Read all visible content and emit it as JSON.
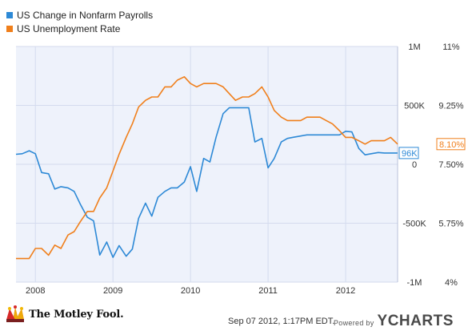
{
  "legend": {
    "series1": "US Change in Nonfarm Payrolls",
    "series2": "US Unemployment Rate"
  },
  "footer": {
    "timestamp": "Sep 07 2012, 1:17PM EDT.",
    "powered_by": "Powered by",
    "brand": "YCHARTS",
    "logo_text": "The Motley Fool."
  },
  "colors": {
    "payrolls": "#2d89d6",
    "unemployment": "#f07f1b",
    "plot_bg": "#eef2fb",
    "grid": "#d4dbee",
    "axis_text": "#333333",
    "label_box_border": "#2d89d6"
  },
  "chart_data": {
    "type": "line",
    "x_ticks": [
      "2008",
      "2009",
      "2010",
      "2011",
      "2012"
    ],
    "x_range": [
      2007.75,
      2012.67
    ],
    "left_axis": {
      "ticks": [
        "1M",
        "500K",
        "0",
        "-500K",
        "-1M"
      ],
      "values": [
        1000,
        500,
        0,
        -500,
        -1000
      ],
      "range": [
        -1000,
        1000
      ],
      "unit": "thousands"
    },
    "right_axis": {
      "ticks": [
        "11%",
        "9.25%",
        "7.50%",
        "5.75%",
        "4%"
      ],
      "values": [
        11,
        9.25,
        7.5,
        5.75,
        4
      ],
      "range": [
        4,
        11
      ]
    },
    "grid": true,
    "legend_position": "top-left",
    "series": [
      {
        "name": "US Change in Nonfarm Payrolls",
        "axis": "left",
        "last_label": "96K",
        "x": [
          2007.75,
          2007.83,
          2007.92,
          2008.0,
          2008.08,
          2008.17,
          2008.25,
          2008.33,
          2008.42,
          2008.5,
          2008.58,
          2008.67,
          2008.75,
          2008.83,
          2008.92,
          2009.0,
          2009.08,
          2009.17,
          2009.25,
          2009.33,
          2009.42,
          2009.5,
          2009.58,
          2009.67,
          2009.75,
          2009.83,
          2009.92,
          2010.0,
          2010.08,
          2010.17,
          2010.25,
          2010.33,
          2010.42,
          2010.5,
          2010.58,
          2010.67,
          2010.75,
          2010.83,
          2010.92,
          2011.0,
          2011.08,
          2011.17,
          2011.25,
          2011.33,
          2011.42,
          2011.5,
          2011.58,
          2011.67,
          2011.75,
          2011.83,
          2011.92,
          2012.0,
          2012.08,
          2012.17,
          2012.25,
          2012.33,
          2012.42,
          2012.5,
          2012.58,
          2012.67
        ],
        "values": [
          85,
          90,
          115,
          90,
          -70,
          -80,
          -210,
          -190,
          -200,
          -230,
          -340,
          -450,
          -480,
          -770,
          -660,
          -790,
          -690,
          -780,
          -720,
          -460,
          -330,
          -440,
          -280,
          -230,
          -200,
          -200,
          -150,
          -20,
          -230,
          50,
          20,
          230,
          430,
          480,
          480,
          480,
          480,
          190,
          220,
          -30,
          50,
          190,
          220,
          230,
          240,
          250,
          250,
          250,
          250,
          250,
          250,
          280,
          275,
          135,
          80,
          90,
          100,
          96,
          96,
          96
        ]
      },
      {
        "name": "US Unemployment Rate",
        "axis": "right",
        "last_label": "8.10%",
        "x": [
          2007.75,
          2007.83,
          2007.92,
          2008.0,
          2008.08,
          2008.17,
          2008.25,
          2008.33,
          2008.42,
          2008.5,
          2008.58,
          2008.67,
          2008.75,
          2008.83,
          2008.92,
          2009.0,
          2009.08,
          2009.17,
          2009.25,
          2009.33,
          2009.42,
          2009.5,
          2009.58,
          2009.67,
          2009.75,
          2009.83,
          2009.92,
          2010.0,
          2010.08,
          2010.17,
          2010.25,
          2010.33,
          2010.42,
          2010.5,
          2010.58,
          2010.67,
          2010.75,
          2010.83,
          2010.92,
          2011.0,
          2011.08,
          2011.17,
          2011.25,
          2011.33,
          2011.42,
          2011.5,
          2011.58,
          2011.67,
          2011.75,
          2011.83,
          2011.92,
          2012.0,
          2012.08,
          2012.17,
          2012.25,
          2012.33,
          2012.42,
          2012.5,
          2012.58,
          2012.67
        ],
        "values": [
          4.7,
          4.7,
          4.7,
          5.0,
          5.0,
          4.8,
          5.1,
          5.0,
          5.4,
          5.5,
          5.8,
          6.1,
          6.1,
          6.5,
          6.8,
          7.3,
          7.8,
          8.3,
          8.7,
          9.2,
          9.4,
          9.5,
          9.5,
          9.8,
          9.8,
          10.0,
          10.1,
          9.9,
          9.8,
          9.9,
          9.9,
          9.9,
          9.8,
          9.6,
          9.4,
          9.5,
          9.5,
          9.6,
          9.8,
          9.5,
          9.1,
          8.9,
          8.8,
          8.8,
          8.8,
          8.9,
          8.9,
          8.9,
          8.8,
          8.7,
          8.5,
          8.3,
          8.3,
          8.2,
          8.1,
          8.2,
          8.2,
          8.2,
          8.3,
          8.1
        ]
      }
    ]
  }
}
